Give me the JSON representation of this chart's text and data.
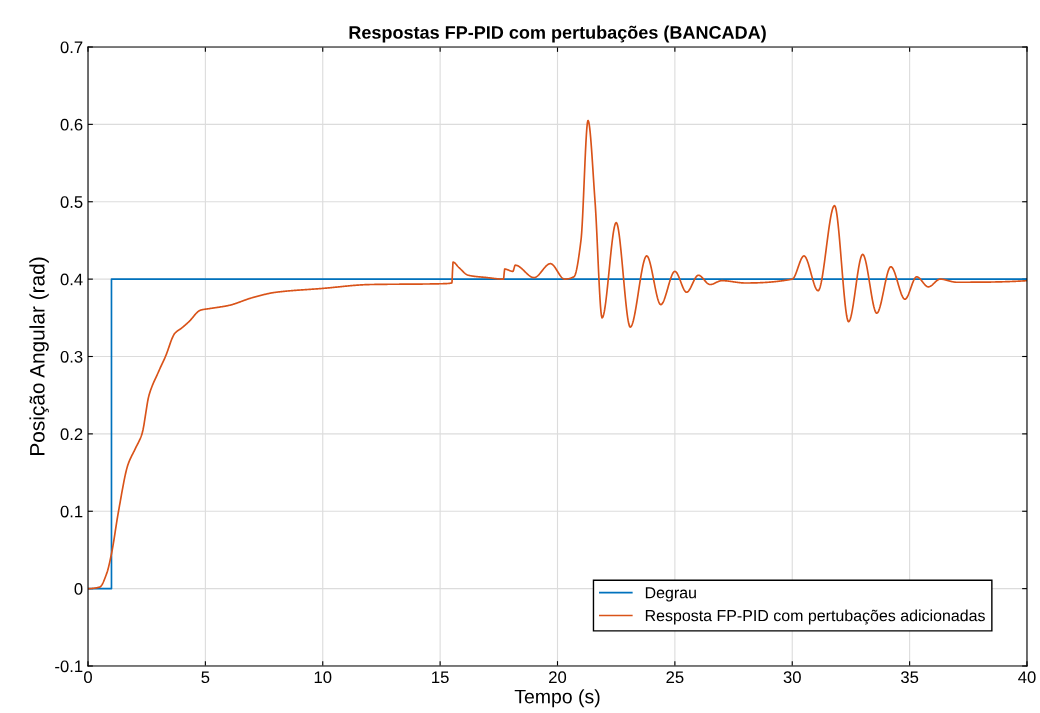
{
  "chart_data": {
    "type": "line",
    "title": "Respostas FP-PID com pertubações (BANCADA)",
    "xlabel": "Tempo (s)",
    "ylabel": "Posição Angular (rad)",
    "xlim": [
      0,
      40
    ],
    "ylim": [
      -0.1,
      0.7
    ],
    "xticks": [
      0,
      5,
      10,
      15,
      20,
      25,
      30,
      35,
      40
    ],
    "yticks": [
      -0.1,
      0,
      0.1,
      0.2,
      0.3,
      0.4,
      0.5,
      0.6,
      0.7
    ],
    "grid": true,
    "legend": "bottom right",
    "line_style": "solid",
    "series": [
      {
        "name": "Degrau",
        "color": "#0072bd",
        "x": [
          0,
          1,
          1,
          40
        ],
        "values": [
          0,
          0,
          0.4,
          0.4
        ]
      },
      {
        "name": "Resposta FP-PID com pertubações adicionadas",
        "color": "#d95319",
        "x": [
          0,
          0.5,
          0.8,
          1,
          1.3,
          1.7,
          2,
          2.3,
          2.6,
          3,
          3.3,
          3.7,
          4,
          4.3,
          4.8,
          5.2,
          6,
          7,
          8,
          10,
          12,
          15,
          15.5,
          15.55,
          15.8,
          16.2,
          17,
          17.7,
          17.75,
          18.1,
          18.2,
          19,
          19.7,
          20.3,
          20.7,
          21,
          21.3,
          21.6,
          21.9,
          22.5,
          23.1,
          23.8,
          24.4,
          25,
          25.5,
          26,
          26.5,
          27,
          28,
          30,
          30.5,
          31.1,
          31.8,
          32.4,
          33,
          33.6,
          34.2,
          34.8,
          35.3,
          35.8,
          36.3,
          37,
          40
        ],
        "values": [
          0,
          0.002,
          0.02,
          0.045,
          0.1,
          0.16,
          0.18,
          0.2,
          0.25,
          0.28,
          0.3,
          0.33,
          0.337,
          0.345,
          0.36,
          0.362,
          0.366,
          0.376,
          0.383,
          0.388,
          0.393,
          0.394,
          0.395,
          0.422,
          0.415,
          0.405,
          0.402,
          0.4,
          0.413,
          0.41,
          0.418,
          0.402,
          0.42,
          0.4,
          0.403,
          0.45,
          0.605,
          0.5,
          0.35,
          0.473,
          0.338,
          0.43,
          0.367,
          0.41,
          0.383,
          0.405,
          0.393,
          0.398,
          0.395,
          0.4,
          0.43,
          0.385,
          0.495,
          0.345,
          0.432,
          0.356,
          0.416,
          0.374,
          0.403,
          0.39,
          0.4,
          0.396,
          0.398
        ]
      }
    ]
  }
}
